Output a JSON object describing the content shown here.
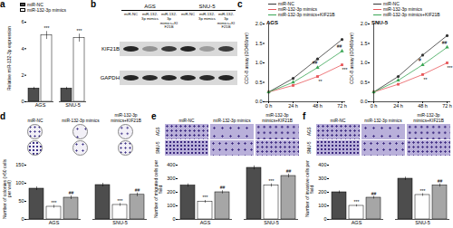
{
  "chart_data": [
    {
      "type": "bar",
      "y_label": "Relative miR-132-3p expression",
      "categories": [
        "AGS",
        "SNU-5"
      ],
      "series": [
        {
          "name": "miR-NC",
          "color": "#4d4d4d",
          "values": [
            1.0,
            1.0
          ],
          "errors": [
            0.1,
            0.1
          ]
        },
        {
          "name": "miR-132-3p mimics",
          "color": "#ffffff",
          "values": [
            5.0,
            4.8
          ],
          "errors": [
            0.3,
            0.3
          ]
        }
      ],
      "ylim": [
        0,
        6
      ],
      "yticks": [
        0,
        2,
        4,
        6
      ],
      "annotations": [
        {
          "series": "miR-132-3p mimics",
          "index": 0,
          "text": "***"
        },
        {
          "series": "miR-132-3p mimics",
          "index": 1,
          "text": "***"
        }
      ]
    },
    {
      "type": "line",
      "title": "AGS",
      "y_label": "CCK-8 assay (OD450nm)",
      "x": [
        "0 h",
        "24 h",
        "48 h",
        "72 h"
      ],
      "series": [
        {
          "name": "miR-NC",
          "color": "#333333",
          "marker": "circle",
          "values": [
            0.25,
            0.6,
            1.1,
            1.6
          ]
        },
        {
          "name": "miR-132-3p mimics",
          "color": "#e8575a",
          "marker": "square",
          "values": [
            0.25,
            0.42,
            0.65,
            0.95
          ]
        },
        {
          "name": "miR-132-3p mimics+KIF21B",
          "color": "#3aa655",
          "marker": "triangle",
          "values": [
            0.25,
            0.5,
            0.88,
            1.3
          ]
        }
      ],
      "ylim": [
        0,
        2
      ],
      "yticks": [
        {
          "value": 0,
          "label": "0.0"
        },
        0.5,
        {
          "value": 1,
          "label": "1.0"
        },
        1.5,
        {
          "value": 2,
          "label": "2.0"
        }
      ],
      "annotations": [
        {
          "series": "miR-132-3p mimics",
          "index": 2,
          "text": "**"
        },
        {
          "series": "miR-132-3p mimics",
          "index": 3,
          "text": "***"
        },
        {
          "series": "miR-132-3p mimics+KIF21B",
          "index": 2,
          "text": "##"
        },
        {
          "series": "miR-132-3p mimics+KIF21B",
          "index": 3,
          "text": "##"
        }
      ]
    },
    {
      "type": "line",
      "title": "SNU-5",
      "y_label": "CCK-8 assay (OD450nm)",
      "x": [
        "0 h",
        "24 h",
        "48 h",
        "72 h"
      ],
      "series": [
        {
          "name": "miR-NC",
          "color": "#333333",
          "marker": "circle",
          "values": [
            0.25,
            0.65,
            1.2,
            1.7
          ]
        },
        {
          "name": "miR-132-3p mimics",
          "color": "#e8575a",
          "marker": "square",
          "values": [
            0.25,
            0.45,
            0.7,
            1.0
          ]
        },
        {
          "name": "miR-132-3p mimics+KIF21B",
          "color": "#3aa655",
          "marker": "triangle",
          "values": [
            0.25,
            0.55,
            0.95,
            1.4
          ]
        }
      ],
      "ylim": [
        0,
        2
      ],
      "yticks": [
        {
          "value": 0,
          "label": "0.0"
        },
        0.5,
        {
          "value": 1,
          "label": "1.0"
        },
        1.5,
        {
          "value": 2,
          "label": "2.0"
        }
      ],
      "annotations": [
        {
          "series": "miR-132-3p mimics",
          "index": 2,
          "text": "**"
        },
        {
          "series": "miR-132-3p mimics",
          "index": 3,
          "text": "***"
        },
        {
          "series": "miR-132-3p mimics+KIF21B",
          "index": 2,
          "text": "#"
        },
        {
          "series": "miR-132-3p mimics+KIF21B",
          "index": 3,
          "text": "##"
        }
      ]
    },
    {
      "type": "bar",
      "y_label": "Number of colonies (>50 cells per well)",
      "categories": [
        "AGS",
        "SNU-5"
      ],
      "series": [
        {
          "name": "miR-NC",
          "color": "#4d4d4d",
          "values": [
            85,
            95
          ],
          "errors": [
            5,
            5
          ]
        },
        {
          "name": "miR-132-3p mimics",
          "color": "#ffffff",
          "values": [
            35,
            40
          ],
          "errors": [
            4,
            4
          ]
        },
        {
          "name": "miR-132-3p mimics+KIF21B",
          "color": "#a6a6a6",
          "values": [
            60,
            68
          ],
          "errors": [
            5,
            5
          ]
        }
      ],
      "ylim": [
        0,
        150
      ],
      "yticks": [
        0,
        50,
        100,
        150
      ],
      "annotations": [
        {
          "series": "miR-132-3p mimics",
          "index": 0,
          "text": "***"
        },
        {
          "series": "miR-132-3p mimics",
          "index": 1,
          "text": "***"
        },
        {
          "series": "miR-132-3p mimics+KIF21B",
          "index": 0,
          "text": "##"
        },
        {
          "series": "miR-132-3p mimics+KIF21B",
          "index": 1,
          "text": "##"
        }
      ]
    },
    {
      "type": "bar",
      "y_label": "Number of migrated cells per field",
      "categories": [
        "AGS",
        "SNU-5"
      ],
      "series": [
        {
          "name": "miR-NC",
          "color": "#4d4d4d",
          "values": [
            250,
            380
          ],
          "errors": [
            12,
            15
          ]
        },
        {
          "name": "miR-132-3p mimics",
          "color": "#ffffff",
          "values": [
            130,
            250
          ],
          "errors": [
            10,
            12
          ]
        },
        {
          "name": "miR-132-3p mimics+KIF21B",
          "color": "#a6a6a6",
          "values": [
            200,
            320
          ],
          "errors": [
            12,
            14
          ]
        }
      ],
      "ylim": [
        0,
        400
      ],
      "yticks": [
        0,
        100,
        200,
        300,
        400
      ],
      "annotations": [
        {
          "series": "miR-132-3p mimics",
          "index": 0,
          "text": "***"
        },
        {
          "series": "miR-132-3p mimics",
          "index": 1,
          "text": "***"
        },
        {
          "series": "miR-132-3p mimics+KIF21B",
          "index": 0,
          "text": "##"
        },
        {
          "series": "miR-132-3p mimics+KIF21B",
          "index": 1,
          "text": "##"
        }
      ]
    },
    {
      "type": "bar",
      "y_label": "Number of invasive cells per field",
      "categories": [
        "AGS",
        "SNU-5"
      ],
      "series": [
        {
          "name": "miR-NC",
          "color": "#4d4d4d",
          "values": [
            200,
            300
          ],
          "errors": [
            10,
            12
          ]
        },
        {
          "name": "miR-132-3p mimics",
          "color": "#ffffff",
          "values": [
            100,
            180
          ],
          "errors": [
            8,
            10
          ]
        },
        {
          "name": "miR-132-3p mimics+KIF21B",
          "color": "#a6a6a6",
          "values": [
            160,
            250
          ],
          "errors": [
            10,
            12
          ]
        }
      ],
      "ylim": [
        0,
        400
      ],
      "yticks": [
        0,
        100,
        200,
        300,
        400
      ],
      "annotations": [
        {
          "series": "miR-132-3p mimics",
          "index": 0,
          "text": "***"
        },
        {
          "series": "miR-132-3p mimics",
          "index": 1,
          "text": "***"
        },
        {
          "series": "miR-132-3p mimics+KIF21B",
          "index": 0,
          "text": "##"
        },
        {
          "series": "miR-132-3p mimics+KIF21B",
          "index": 1,
          "text": "##"
        }
      ]
    }
  ],
  "figure": {
    "panel_labels": [
      "a",
      "b",
      "c",
      "d",
      "e",
      "f"
    ],
    "blot": {
      "cell_lines": [
        "AGS",
        "SNU-5"
      ],
      "lanes": [
        "miR-NC",
        "miR-132-3p mimics",
        "miR-132-3p mimics+KIF21B"
      ],
      "rows": [
        "KIF21B",
        "GAPDH"
      ]
    }
  }
}
